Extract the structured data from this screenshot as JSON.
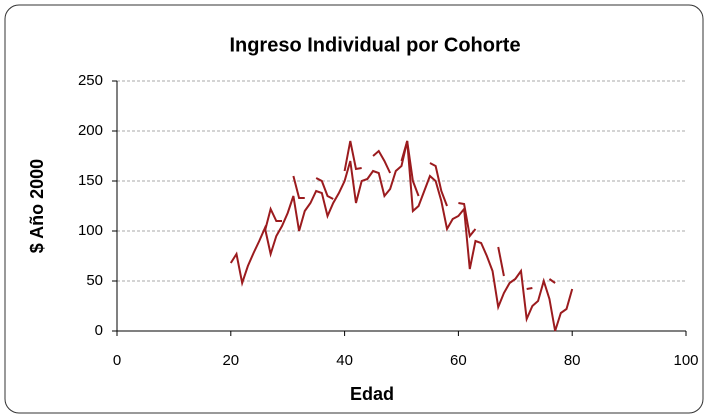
{
  "chart_data": {
    "type": "line",
    "title": "Ingreso Individual por  Cohorte",
    "x_label": "Edad",
    "y_label": "$ Año 2000",
    "x": [
      20,
      21,
      22,
      23,
      24,
      25,
      26,
      27,
      28,
      29,
      30,
      31,
      32,
      33,
      34,
      35,
      36,
      37,
      38,
      39,
      40,
      41,
      42,
      43,
      44,
      45,
      46,
      47,
      48,
      49,
      50,
      51,
      52,
      53,
      54,
      55,
      56,
      57,
      58,
      59,
      60,
      61,
      62,
      63,
      64,
      65,
      66,
      67,
      68,
      69,
      70,
      71,
      72,
      73,
      74,
      75,
      76,
      77,
      78,
      79,
      80
    ],
    "series": [
      {
        "color": "#9b1b1e",
        "values": [
          68,
          77,
          48,
          65,
          78,
          90,
          103,
          77,
          95,
          105,
          118,
          135,
          100,
          120,
          128,
          140,
          138,
          115,
          128,
          138,
          150,
          170,
          128,
          150,
          152,
          160,
          158,
          135,
          142,
          160,
          165,
          190,
          120,
          125,
          140,
          155,
          150,
          130,
          102,
          112,
          115,
          122,
          62,
          90,
          88,
          75,
          60,
          24,
          38,
          48,
          52,
          60,
          12,
          25,
          30,
          50,
          32,
          0,
          18,
          22,
          42
        ]
      },
      {
        "color": "#9b1b1e",
        "values": [
          null,
          null,
          null,
          null,
          null,
          null,
          100,
          122,
          110,
          110,
          null,
          155,
          133,
          133,
          null,
          153,
          150,
          135,
          132,
          null,
          160,
          190,
          162,
          163,
          null,
          175,
          180,
          170,
          158,
          null,
          170,
          190,
          150,
          135,
          null,
          168,
          165,
          140,
          125,
          null,
          128,
          127,
          95,
          102,
          null,
          null,
          null,
          84,
          55,
          null,
          null,
          null,
          42,
          43,
          null,
          null,
          52,
          48,
          null,
          null,
          null
        ]
      }
    ],
    "xlim": [
      0,
      100
    ],
    "xticks": [
      0,
      20,
      40,
      60,
      80,
      100
    ],
    "ylim": [
      0,
      250
    ],
    "yticks": [
      0,
      50,
      100,
      150,
      200,
      250
    ],
    "grid": true
  }
}
